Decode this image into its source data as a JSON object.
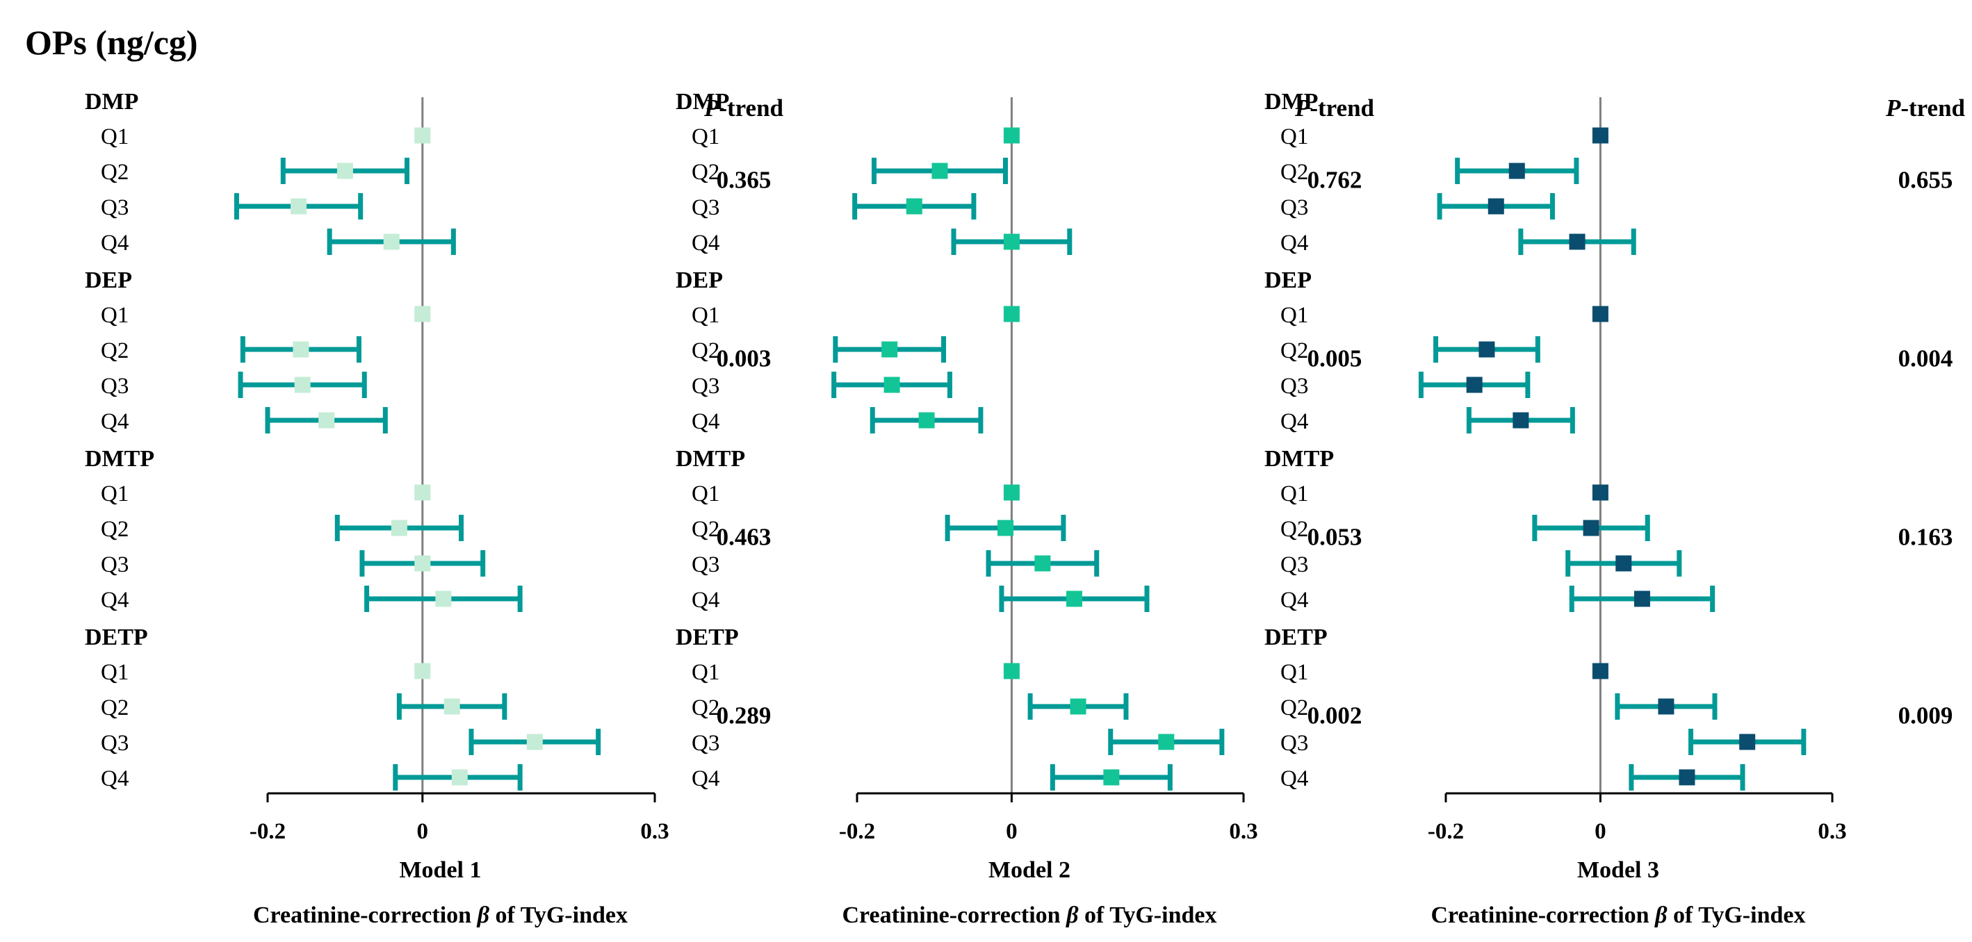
{
  "title": "OPs (ng/cg)",
  "colors": {
    "whisker": "#009a97",
    "axis": "#7f7f7f",
    "model_1_marker": "#c5ecd6",
    "model_2_marker": "#13c596",
    "model_3_marker": "#0a4d6e"
  },
  "chart_data": [
    {
      "type": "forest",
      "panel": "Model 1",
      "xlabel_prefix": "Creatinine-correction ",
      "xlabel_beta": "β",
      "xlabel_suffix": " of TyG-index",
      "xlim": [
        -0.2,
        0.3
      ],
      "xticks": [
        -0.2,
        0,
        0.3
      ],
      "xtick_labels": [
        "-0.2",
        "0",
        "0.3"
      ],
      "ptrend_label_italic": "P",
      "ptrend_label_rest": "-trend",
      "groups": [
        {
          "name": "DMP",
          "p_trend": "0.365",
          "rows": [
            {
              "label": "Q1",
              "beta": 0,
              "lo": null,
              "hi": null
            },
            {
              "label": "Q2",
              "beta": -0.1,
              "lo": -0.18,
              "hi": -0.02
            },
            {
              "label": "Q3",
              "beta": -0.16,
              "lo": -0.24,
              "hi": -0.08
            },
            {
              "label": "Q4",
              "beta": -0.04,
              "lo": -0.12,
              "hi": 0.04
            }
          ]
        },
        {
          "name": "DEP",
          "p_trend": "0.003",
          "rows": [
            {
              "label": "Q1",
              "beta": 0,
              "lo": null,
              "hi": null
            },
            {
              "label": "Q2",
              "beta": -0.157,
              "lo": -0.232,
              "hi": -0.082
            },
            {
              "label": "Q3",
              "beta": -0.155,
              "lo": -0.235,
              "hi": -0.075
            },
            {
              "label": "Q4",
              "beta": -0.124,
              "lo": -0.2,
              "hi": -0.048
            }
          ]
        },
        {
          "name": "DMTP",
          "p_trend": "0.463",
          "rows": [
            {
              "label": "Q1",
              "beta": 0,
              "lo": null,
              "hi": null
            },
            {
              "label": "Q2",
              "beta": -0.03,
              "lo": -0.11,
              "hi": 0.05
            },
            {
              "label": "Q3",
              "beta": 0,
              "lo": -0.078,
              "hi": 0.078
            },
            {
              "label": "Q4",
              "beta": 0.027,
              "lo": -0.072,
              "hi": 0.126
            }
          ]
        },
        {
          "name": "DETP",
          "p_trend": "0.289",
          "rows": [
            {
              "label": "Q1",
              "beta": 0,
              "lo": null,
              "hi": null
            },
            {
              "label": "Q2",
              "beta": 0.038,
              "lo": -0.03,
              "hi": 0.106
            },
            {
              "label": "Q3",
              "beta": 0.145,
              "lo": 0.063,
              "hi": 0.227
            },
            {
              "label": "Q4",
              "beta": 0.048,
              "lo": -0.035,
              "hi": 0.126
            }
          ]
        }
      ]
    },
    {
      "type": "forest",
      "panel": "Model 2",
      "xlabel_prefix": "Creatinine-correction ",
      "xlabel_beta": "β",
      "xlabel_suffix": " of TyG-index",
      "xlim": [
        -0.2,
        0.3
      ],
      "xticks": [
        -0.2,
        0,
        0.3
      ],
      "xtick_labels": [
        "-0.2",
        "0",
        "0.3"
      ],
      "ptrend_label_italic": "P",
      "ptrend_label_rest": "-trend",
      "groups": [
        {
          "name": "DMP",
          "p_trend": "0.762",
          "rows": [
            {
              "label": "Q1",
              "beta": 0,
              "lo": null,
              "hi": null
            },
            {
              "label": "Q2",
              "beta": -0.093,
              "lo": -0.178,
              "hi": -0.008
            },
            {
              "label": "Q3",
              "beta": -0.126,
              "lo": -0.203,
              "hi": -0.049
            },
            {
              "label": "Q4",
              "beta": 0,
              "lo": -0.075,
              "hi": 0.075
            }
          ]
        },
        {
          "name": "DEP",
          "p_trend": "0.005",
          "rows": [
            {
              "label": "Q1",
              "beta": 0,
              "lo": null,
              "hi": null
            },
            {
              "label": "Q2",
              "beta": -0.158,
              "lo": -0.228,
              "hi": -0.088
            },
            {
              "label": "Q3",
              "beta": -0.155,
              "lo": -0.23,
              "hi": -0.08
            },
            {
              "label": "Q4",
              "beta": -0.11,
              "lo": -0.18,
              "hi": -0.04
            }
          ]
        },
        {
          "name": "DMTP",
          "p_trend": "0.053",
          "rows": [
            {
              "label": "Q1",
              "beta": 0,
              "lo": null,
              "hi": null
            },
            {
              "label": "Q2",
              "beta": -0.008,
              "lo": -0.083,
              "hi": 0.067
            },
            {
              "label": "Q3",
              "beta": 0.04,
              "lo": -0.03,
              "hi": 0.11
            },
            {
              "label": "Q4",
              "beta": 0.081,
              "lo": -0.013,
              "hi": 0.175
            }
          ]
        },
        {
          "name": "DETP",
          "p_trend": "0.002",
          "rows": [
            {
              "label": "Q1",
              "beta": 0,
              "lo": null,
              "hi": null
            },
            {
              "label": "Q2",
              "beta": 0.086,
              "lo": 0.024,
              "hi": 0.148
            },
            {
              "label": "Q3",
              "beta": 0.2,
              "lo": 0.128,
              "hi": 0.272
            },
            {
              "label": "Q4",
              "beta": 0.129,
              "lo": 0.053,
              "hi": 0.205
            }
          ]
        }
      ]
    },
    {
      "type": "forest",
      "panel": "Model 3",
      "xlabel_prefix": "Creatinine-correction ",
      "xlabel_beta": "β",
      "xlabel_suffix": " of TyG-index",
      "xlim": [
        -0.2,
        0.3
      ],
      "xticks": [
        -0.2,
        0,
        0.3
      ],
      "xtick_labels": [
        "-0.2",
        "0",
        "0.3"
      ],
      "ptrend_label_italic": "P",
      "ptrend_label_rest": "-trend",
      "groups": [
        {
          "name": "DMP",
          "p_trend": "0.655",
          "rows": [
            {
              "label": "Q1",
              "beta": 0,
              "lo": null,
              "hi": null
            },
            {
              "label": "Q2",
              "beta": -0.108,
              "lo": -0.185,
              "hi": -0.031
            },
            {
              "label": "Q3",
              "beta": -0.135,
              "lo": -0.208,
              "hi": -0.062
            },
            {
              "label": "Q4",
              "beta": -0.03,
              "lo": -0.103,
              "hi": 0.043
            }
          ]
        },
        {
          "name": "DEP",
          "p_trend": "0.004",
          "rows": [
            {
              "label": "Q1",
              "beta": 0,
              "lo": null,
              "hi": null
            },
            {
              "label": "Q2",
              "beta": -0.147,
              "lo": -0.213,
              "hi": -0.081
            },
            {
              "label": "Q3",
              "beta": -0.163,
              "lo": -0.232,
              "hi": -0.094
            },
            {
              "label": "Q4",
              "beta": -0.103,
              "lo": -0.17,
              "hi": -0.036
            }
          ]
        },
        {
          "name": "DMTP",
          "p_trend": "0.163",
          "rows": [
            {
              "label": "Q1",
              "beta": 0,
              "lo": null,
              "hi": null
            },
            {
              "label": "Q2",
              "beta": -0.012,
              "lo": -0.085,
              "hi": 0.061
            },
            {
              "label": "Q3",
              "beta": 0.03,
              "lo": -0.042,
              "hi": 0.102
            },
            {
              "label": "Q4",
              "beta": 0.054,
              "lo": -0.037,
              "hi": 0.145
            }
          ]
        },
        {
          "name": "DETP",
          "p_trend": "0.009",
          "rows": [
            {
              "label": "Q1",
              "beta": 0,
              "lo": null,
              "hi": null
            },
            {
              "label": "Q2",
              "beta": 0.085,
              "lo": 0.022,
              "hi": 0.148
            },
            {
              "label": "Q3",
              "beta": 0.19,
              "lo": 0.117,
              "hi": 0.263
            },
            {
              "label": "Q4",
              "beta": 0.112,
              "lo": 0.04,
              "hi": 0.184
            }
          ]
        }
      ]
    }
  ]
}
